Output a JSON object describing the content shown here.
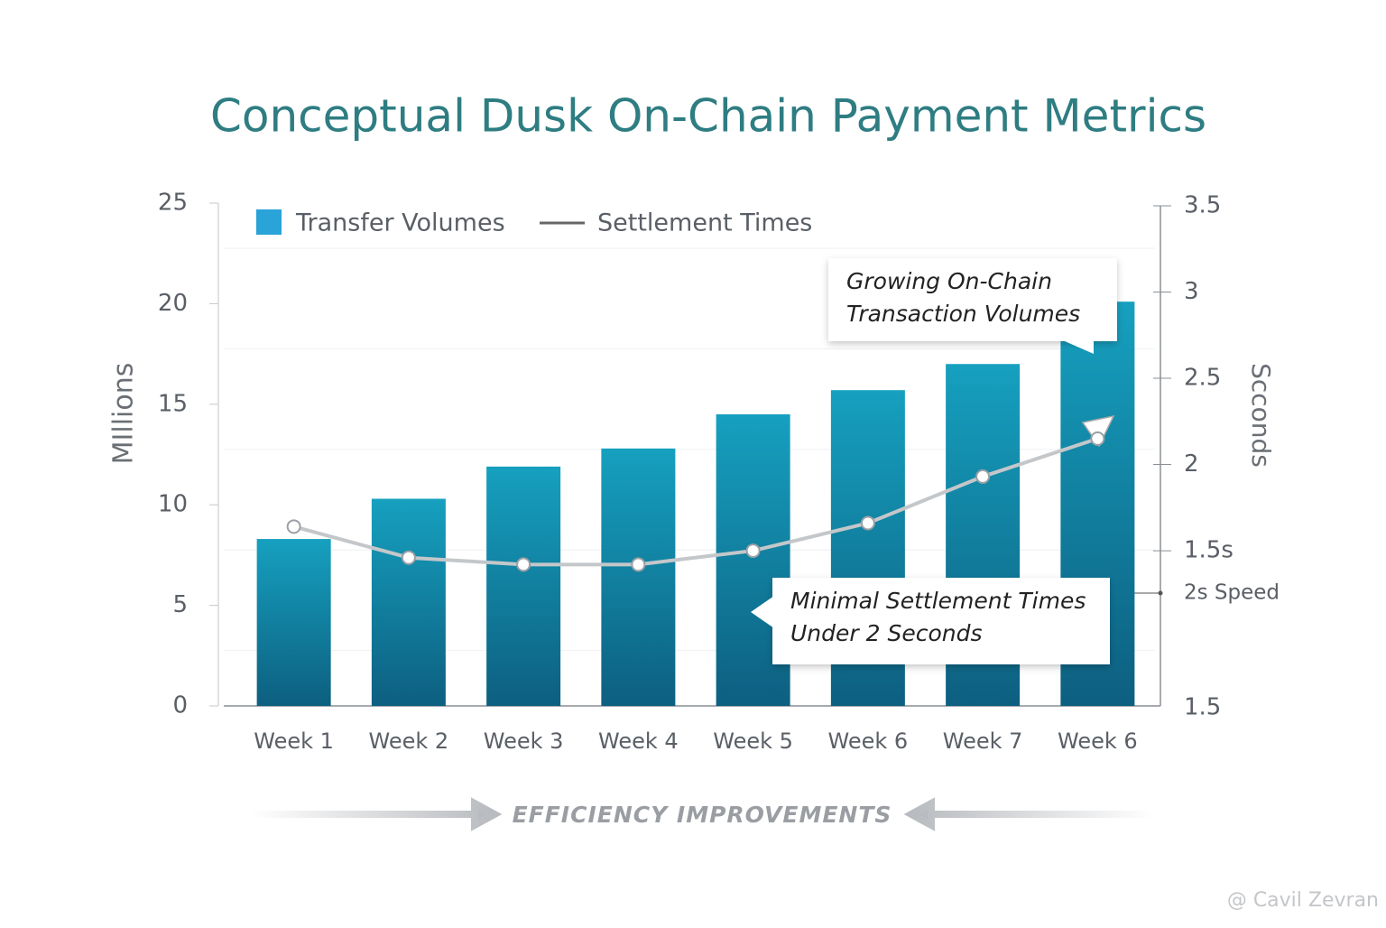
{
  "chart_data": {
    "type": "bar",
    "title": "Conceptual Dusk On-Chain Payment Metrics",
    "y_label": "MIllions",
    "y2_label": "Scconds",
    "categories": [
      "Week 1",
      "Week 2",
      "Week 3",
      "Week 4",
      "Week 5",
      "Week 6",
      "Week 7",
      "Week 6"
    ],
    "series": [
      {
        "name": "Transfer Volumes",
        "type": "bar",
        "color": "#1b9fc0",
        "values": [
          8.3,
          10.3,
          11.9,
          12.8,
          14.5,
          15.7,
          17.0,
          20.1
        ]
      },
      {
        "name": "Settlement Times",
        "type": "line",
        "color": "#c4c7ca",
        "axis": "y2",
        "values": [
          1.64,
          1.46,
          1.42,
          1.42,
          1.5,
          1.66,
          1.93,
          2.15
        ]
      }
    ],
    "ylim": [
      0,
      25
    ],
    "yticks": [
      0,
      5,
      10,
      15,
      20,
      25
    ],
    "y2lim": [
      0.6,
      3.5
    ],
    "y2ticks": [
      {
        "value": 1.5,
        "label": "1.5s"
      },
      2.0,
      2.5,
      3.0,
      3.5
    ],
    "y2_notes": [
      "2s Speed",
      "1.5"
    ],
    "grid": true,
    "legend": "top-left",
    "annotations": [
      {
        "lines": [
          "Growing On-Chain",
          "Transaction Volumes"
        ]
      },
      {
        "lines": [
          "Minimal Settlement Times",
          "Under 2 Seconds"
        ]
      }
    ],
    "footer": "EFFICIENCY IMPROVEMENTS",
    "watermark": "@ Cavil Zevran"
  }
}
